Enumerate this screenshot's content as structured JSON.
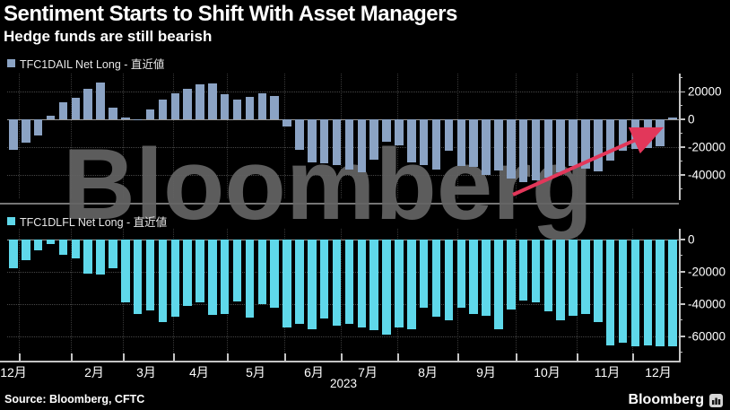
{
  "title": "Sentiment Starts to Shift With Asset Managers",
  "subtitle": "Hedge funds are still bearish",
  "source": "Source: Bloomberg, CFTC",
  "brand": {
    "logo_text": "Bloomberg",
    "watermark": "Bloomberg",
    "logo_icon": "bar-chart-icon"
  },
  "colors": {
    "background": "#000000",
    "asset_bar": "#8BA3C4",
    "hedge_bar": "#5FD8EA",
    "arrow": "#E2375A",
    "grid": "#474747",
    "axis": "#C4C4C4",
    "watermark": "#646464"
  },
  "x_axis": {
    "month_labels": [
      "12月",
      "2月",
      "3月",
      "4月",
      "5月",
      "6月",
      "7月",
      "8月",
      "9月",
      "10月",
      "11月",
      "12月"
    ],
    "year_label": "2023"
  },
  "chart_data": [
    {
      "type": "bar",
      "panel": "asset_managers",
      "legend": "TFC1DAIL Net Long - 直近値",
      "legend_position": "top-left",
      "grid": "dotted",
      "ylim": [
        -57000,
        33000
      ],
      "yticks": [
        {
          "value": 20000,
          "label": "20000"
        },
        {
          "value": 0,
          "label": "0"
        },
        {
          "value": -20000,
          "label": "-20000"
        },
        {
          "value": -40000,
          "label": "-40000"
        }
      ],
      "values": [
        -22000,
        -17000,
        -12000,
        2500,
        12000,
        15500,
        22000,
        26500,
        8500,
        1000,
        -500,
        7000,
        14500,
        19000,
        22000,
        25000,
        26000,
        18000,
        14000,
        16000,
        19000,
        17000,
        -5000,
        -22000,
        -31000,
        -31500,
        -33000,
        -36000,
        -38500,
        -29000,
        -16000,
        -19000,
        -31000,
        -33000,
        -36000,
        -23000,
        -33500,
        -34500,
        -40000,
        -37000,
        -43000,
        -45500,
        -44000,
        -42000,
        -38000,
        -33500,
        -35700,
        -37400,
        -30000,
        -23000,
        -21500,
        -20500,
        -19500,
        1500
      ],
      "annotation": {
        "shape": "arrow",
        "direction": "up-right",
        "meaning": "sentiment shifting upward"
      }
    },
    {
      "type": "bar",
      "panel": "hedge_funds",
      "legend": "TFC1DLFL Net Long - 直近値",
      "legend_position": "top-left",
      "grid": "dotted",
      "ylim": [
        -74000,
        6500
      ],
      "yticks": [
        {
          "value": 0,
          "label": "0"
        },
        {
          "value": -20000,
          "label": "-20000"
        },
        {
          "value": -40000,
          "label": "-40000"
        },
        {
          "value": -60000,
          "label": "-60000"
        }
      ],
      "values": [
        -18000,
        -13000,
        -7000,
        -3000,
        -9500,
        -12000,
        -21000,
        -22000,
        -18000,
        -39000,
        -46000,
        -44000,
        -51500,
        -48000,
        -41000,
        -39000,
        -47000,
        -46500,
        -38500,
        -48500,
        -40000,
        -42500,
        -54500,
        -52500,
        -55500,
        -49000,
        -53500,
        -52500,
        -54500,
        -56500,
        -59000,
        -54500,
        -55500,
        -42500,
        -48000,
        -50000,
        -42500,
        -46500,
        -47500,
        -55500,
        -43500,
        -38000,
        -39000,
        -44500,
        -50000,
        -47500,
        -46000,
        -51000,
        -65500,
        -64000,
        -66500,
        -65500,
        -66500,
        -66000
      ]
    }
  ]
}
